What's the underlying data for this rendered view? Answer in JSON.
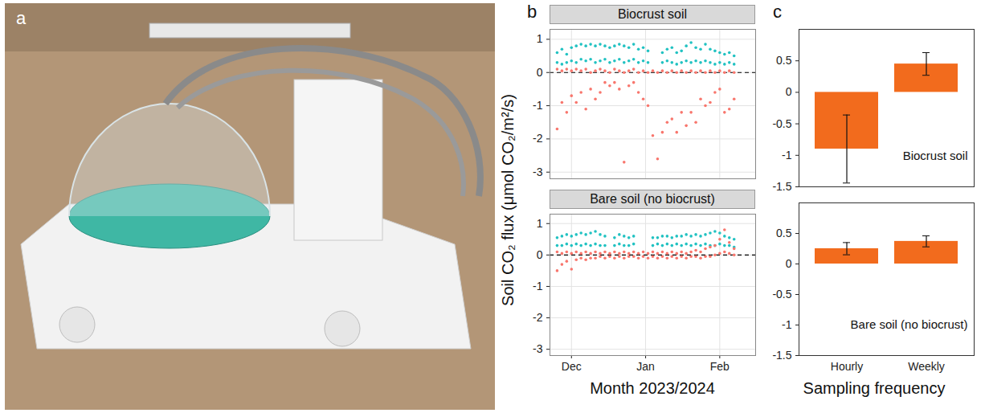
{
  "photo": {
    "panel": "a"
  },
  "chart_data": [
    {
      "type": "scatter",
      "panel": "b",
      "title": "Biocrust soil",
      "ylabel": "Soil CO₂ flux (μmol CO₂/m²/s)",
      "xlim": [
        -9,
        77
      ],
      "xticks": [
        {
          "value": 0,
          "label": "Dec"
        },
        {
          "value": 31,
          "label": "Jan"
        },
        {
          "value": 62,
          "label": "Feb"
        }
      ],
      "ylim": [
        -3.2,
        1.3
      ],
      "yticks": [
        -3,
        -2,
        -1,
        0,
        1
      ],
      "grid": true,
      "reference_line": 0,
      "marker": "circle",
      "series": [
        {
          "color": "#21c2c2",
          "x": [
            -6,
            -6,
            -4,
            -4,
            -2,
            -2,
            0,
            0,
            2,
            2,
            4,
            4,
            6,
            6,
            8,
            8,
            10,
            10,
            12,
            12,
            14,
            14,
            16,
            16,
            18,
            18,
            20,
            20,
            22,
            22,
            24,
            24,
            26,
            26,
            28,
            28,
            30,
            30,
            32,
            32,
            38,
            38,
            40,
            40,
            42,
            42,
            44,
            44,
            46,
            46,
            48,
            48,
            50,
            50,
            52,
            52,
            54,
            54,
            56,
            56,
            58,
            58,
            60,
            60,
            62,
            62,
            64,
            64,
            66,
            66,
            68,
            68
          ],
          "values": [
            0.3,
            0.6,
            0.25,
            0.7,
            0.3,
            0.55,
            0.35,
            0.75,
            0.3,
            0.8,
            0.4,
            0.85,
            0.35,
            0.8,
            0.4,
            0.85,
            0.3,
            0.8,
            0.35,
            0.85,
            0.4,
            0.8,
            0.3,
            0.75,
            0.35,
            0.8,
            0.4,
            0.85,
            0.3,
            0.8,
            0.35,
            0.75,
            0.4,
            0.85,
            0.3,
            0.7,
            0.35,
            0.75,
            0.3,
            0.65,
            0.3,
            0.6,
            0.35,
            0.7,
            0.3,
            0.75,
            0.25,
            0.6,
            0.3,
            0.65,
            0.35,
            0.8,
            0.3,
            0.9,
            0.35,
            0.75,
            0.3,
            0.7,
            0.35,
            0.85,
            0.3,
            0.7,
            0.25,
            0.65,
            0.3,
            0.6,
            0.25,
            0.55,
            0.3,
            0.6,
            0.25,
            0.5
          ]
        },
        {
          "color": "#f8766d",
          "x": [
            -6,
            -6,
            -4,
            -4,
            -2,
            -2,
            0,
            0,
            2,
            2,
            4,
            4,
            6,
            6,
            8,
            8,
            10,
            10,
            12,
            12,
            14,
            14,
            16,
            16,
            18,
            18,
            20,
            20,
            22,
            22,
            24,
            24,
            26,
            26,
            28,
            28,
            30,
            30,
            32,
            32,
            34,
            34,
            36,
            36,
            38,
            38,
            40,
            40,
            42,
            42,
            44,
            44,
            46,
            46,
            48,
            48,
            50,
            50,
            52,
            52,
            54,
            54,
            56,
            56,
            58,
            58,
            60,
            60,
            62,
            62,
            64,
            64,
            66,
            66,
            68,
            68
          ],
          "values": [
            0.1,
            -1.7,
            0.05,
            -0.9,
            0.1,
            -1.2,
            0.05,
            -0.7,
            0.1,
            -0.9,
            0.05,
            -0.6,
            0.1,
            -1.1,
            0,
            -0.5,
            0.05,
            -0.8,
            0.1,
            -0.6,
            0.05,
            -0.3,
            0,
            -0.4,
            0.1,
            -0.3,
            0.05,
            -0.5,
            0,
            -2.7,
            0.05,
            -0.4,
            0.1,
            -0.3,
            0,
            -0.6,
            0.05,
            -0.8,
            0,
            -1.0,
            0.05,
            -1.9,
            0,
            -2.6,
            0.05,
            -1.8,
            0,
            -1.5,
            0.05,
            -1.4,
            0,
            -1.8,
            0.05,
            -1.2,
            0,
            -1.6,
            0.05,
            -1.2,
            0,
            -1.5,
            0.05,
            -0.8,
            0,
            -1.0,
            0.05,
            -0.9,
            0,
            -0.6,
            0.05,
            -0.5,
            0,
            -1.2,
            0.05,
            -1.1,
            0,
            -0.8
          ]
        }
      ]
    },
    {
      "type": "scatter",
      "title": "Bare soil (no biocrust)",
      "xlabel": "Month 2023/2024",
      "xlim": [
        -9,
        77
      ],
      "xticks": [
        {
          "value": 0,
          "label": "Dec"
        },
        {
          "value": 31,
          "label": "Jan"
        },
        {
          "value": 62,
          "label": "Feb"
        }
      ],
      "ylim": [
        -3.2,
        1.3
      ],
      "yticks": [
        -3,
        -2,
        -1,
        0,
        1
      ],
      "grid": true,
      "reference_line": 0,
      "marker": "circle",
      "series": [
        {
          "color": "#21c2c2",
          "x": [
            -6,
            -6,
            -4,
            -4,
            -2,
            -2,
            0,
            0,
            2,
            2,
            4,
            4,
            6,
            6,
            8,
            8,
            10,
            10,
            12,
            12,
            14,
            14,
            18,
            18,
            20,
            20,
            22,
            22,
            24,
            24,
            26,
            26,
            34,
            34,
            36,
            36,
            38,
            38,
            40,
            40,
            42,
            42,
            44,
            44,
            46,
            46,
            48,
            48,
            50,
            50,
            52,
            52,
            54,
            54,
            56,
            56,
            58,
            58,
            60,
            60,
            62,
            62,
            64,
            64,
            66,
            66,
            68,
            68
          ],
          "values": [
            0.3,
            0.55,
            0.3,
            0.6,
            0.35,
            0.65,
            0.3,
            0.6,
            0.35,
            0.65,
            0.3,
            0.7,
            0.35,
            0.65,
            0.3,
            0.7,
            0.35,
            0.75,
            0.3,
            0.65,
            0.3,
            0.6,
            0.3,
            0.55,
            0.35,
            0.65,
            0.3,
            0.6,
            0.3,
            0.55,
            0.35,
            0.6,
            0.3,
            0.55,
            0.35,
            0.55,
            0.3,
            0.6,
            0.35,
            0.6,
            0.3,
            0.55,
            0.35,
            0.6,
            0.3,
            0.6,
            0.35,
            0.65,
            0.3,
            0.6,
            0.35,
            0.65,
            0.3,
            0.6,
            0.35,
            0.65,
            0.3,
            0.7,
            0.3,
            0.75,
            0.35,
            0.7,
            0.3,
            0.6,
            0.3,
            0.55,
            0.25,
            0.5
          ]
        },
        {
          "color": "#f8766d",
          "x": [
            -6,
            -6,
            -4,
            -4,
            -2,
            -2,
            0,
            0,
            2,
            2,
            4,
            4,
            6,
            6,
            8,
            8,
            10,
            10,
            12,
            12,
            14,
            14,
            16,
            16,
            18,
            18,
            20,
            20,
            22,
            22,
            24,
            24,
            26,
            26,
            28,
            28,
            30,
            30,
            32,
            32,
            34,
            34,
            36,
            36,
            38,
            38,
            40,
            40,
            42,
            42,
            44,
            44,
            46,
            46,
            48,
            48,
            50,
            50,
            52,
            52,
            54,
            54,
            56,
            56,
            58,
            58,
            60,
            60,
            62,
            62,
            64,
            64,
            66,
            66,
            68,
            68
          ],
          "values": [
            0.1,
            -0.5,
            0.05,
            -0.3,
            0.1,
            -0.2,
            0.05,
            -0.45,
            0.1,
            -0.15,
            0.05,
            -0.1,
            0.1,
            -0.15,
            0.05,
            -0.1,
            0.1,
            -0.1,
            0.05,
            -0.05,
            0.1,
            -0.1,
            0.05,
            -0.05,
            0.1,
            -0.1,
            0.05,
            -0.05,
            0.1,
            -0.1,
            0.05,
            -0.05,
            0.1,
            -0.05,
            0.05,
            -0.1,
            0.1,
            -0.05,
            0.05,
            -0.1,
            0.1,
            -0.05,
            0.05,
            -0.1,
            0.1,
            -0.05,
            0.05,
            -0.1,
            0.1,
            -0.05,
            0.05,
            -0.1,
            0.1,
            -0.05,
            0.05,
            -0.1,
            0.1,
            -0.05,
            0.15,
            -0.05,
            0.1,
            -0.1,
            0.2,
            -0.05,
            0.25,
            -0.05,
            0.3,
            0,
            0.5,
            0.05,
            0.8,
            0.1,
            0.4,
            0.05,
            0.2,
            0
          ]
        }
      ]
    },
    {
      "type": "bar",
      "panel": "c",
      "title": "Biocrust soil",
      "categories": [
        "Hourly",
        "Weekly"
      ],
      "values": [
        -0.9,
        0.45
      ],
      "errors": [
        0.54,
        0.18
      ],
      "color": "#f26b1d",
      "ylim": [
        -1.5,
        1
      ],
      "yticks": [
        -1.5,
        -1,
        -0.5,
        0,
        0.5
      ],
      "tick_labels": "y"
    },
    {
      "type": "bar",
      "title": "Bare soil (no biocrust)",
      "categories": [
        "Hourly",
        "Weekly"
      ],
      "values": [
        0.25,
        0.37
      ],
      "errors": [
        0.1,
        0.09
      ],
      "color": "#f26b1d",
      "ylim": [
        -1.5,
        1
      ],
      "yticks": [
        -1.5,
        -1,
        -0.5,
        0,
        0.5
      ],
      "xlabel": "Sampling frequency"
    }
  ]
}
